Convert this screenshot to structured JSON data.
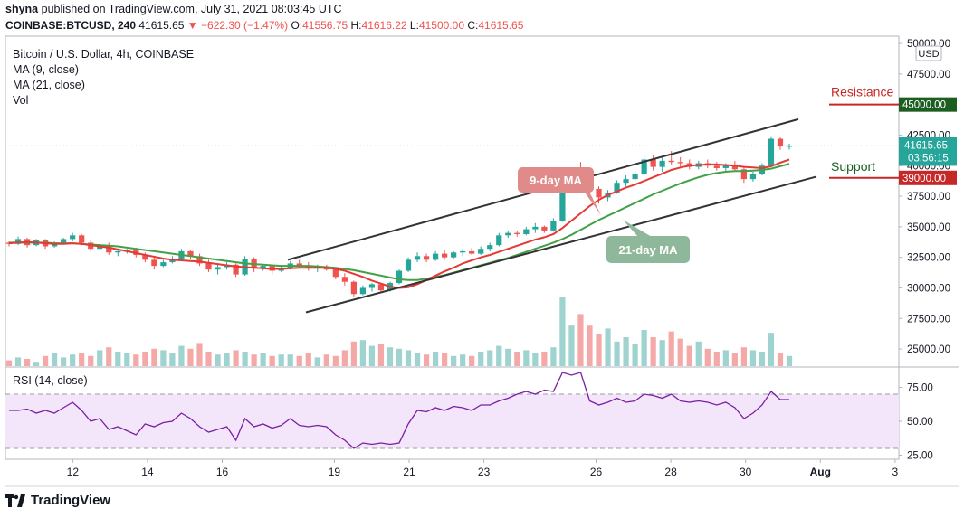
{
  "header": {
    "author": "shyna",
    "published_text": "published on TradingView.com, July 31, 2021 08:03:45 UTC"
  },
  "quote": {
    "symbol": "COINBASE:BTCUSD, 240",
    "last": "41615.65",
    "change": "−622.30 (−1.47%)",
    "o_label": "O:",
    "o": "41556.75",
    "h_label": "H:",
    "h": "41616.22",
    "l_label": "L:",
    "l": "41500.00",
    "c_label": "C:",
    "c": "41615.65"
  },
  "legend": {
    "title": "Bitcoin / U.S. Dollar, 4h, COINBASE",
    "ma9": "MA (9, close)",
    "ma21": "MA (21, close)",
    "vol": "Vol"
  },
  "rsi_label": "RSI (14, close)",
  "footer": {
    "brand": "TradingView"
  },
  "colors": {
    "up": "#26a69a",
    "down": "#ef5350",
    "ma9": "#e53935",
    "ma21": "#43a047",
    "rsi": "#7b1fa2",
    "rsi_band": "#f3e5fa",
    "resistance": "#1b5e20",
    "support": "#c62828"
  },
  "chart_data": [
    {
      "type": "candlestick",
      "title": "Bitcoin / U.S. Dollar, 4h, COINBASE",
      "yunit": "USD",
      "ylim": [
        23600,
        50300
      ],
      "y_ticks": [
        25000,
        27500,
        30000,
        32500,
        35000,
        37500,
        40000,
        42500,
        45000,
        47500,
        50000
      ],
      "y_tick_labels": [
        "25000.00",
        "27500.00",
        "30000.00",
        "32500.00",
        "35000.00",
        "37500.00",
        "40000.00",
        "42500.00",
        "45000.00",
        "47500.00",
        "50000.00"
      ],
      "x_ticks": [
        {
          "day": 12,
          "label": "12"
        },
        {
          "day": 14,
          "label": "14"
        },
        {
          "day": 16,
          "label": "16"
        },
        {
          "day": 19,
          "label": "19"
        },
        {
          "day": 21,
          "label": "21"
        },
        {
          "day": 23,
          "label": "23"
        },
        {
          "day": 26,
          "label": "26"
        },
        {
          "day": 28,
          "label": "28"
        },
        {
          "day": 30,
          "label": "30"
        },
        {
          "day": 32,
          "label": "Aug"
        },
        {
          "day": 34,
          "label": "3"
        }
      ],
      "xlim": [
        10.2,
        34.1
      ],
      "candles": [
        [
          33700,
          33800,
          33400,
          33600
        ],
        [
          33600,
          34200,
          33500,
          34000
        ],
        [
          34000,
          34100,
          33300,
          33500
        ],
        [
          33500,
          34000,
          33400,
          33900
        ],
        [
          33900,
          34000,
          33200,
          33400
        ],
        [
          33400,
          33800,
          33300,
          33700
        ],
        [
          33700,
          34100,
          33600,
          34000
        ],
        [
          34000,
          34500,
          33800,
          34300
        ],
        [
          34300,
          34400,
          33500,
          33700
        ],
        [
          33700,
          33900,
          33000,
          33200
        ],
        [
          33200,
          33600,
          33100,
          33500
        ],
        [
          33500,
          33700,
          32700,
          32900
        ],
        [
          32900,
          33200,
          32600,
          33000
        ],
        [
          33000,
          33200,
          32800,
          33100
        ],
        [
          33100,
          33300,
          32500,
          32700
        ],
        [
          32700,
          32900,
          32100,
          32300
        ],
        [
          32300,
          32600,
          31500,
          31800
        ],
        [
          31800,
          32300,
          31700,
          32100
        ],
        [
          32100,
          32600,
          32000,
          32400
        ],
        [
          32400,
          33200,
          32300,
          33000
        ],
        [
          33000,
          33100,
          32400,
          32600
        ],
        [
          32600,
          32800,
          31800,
          32000
        ],
        [
          32000,
          32300,
          31300,
          31500
        ],
        [
          31500,
          31900,
          31100,
          31700
        ],
        [
          31700,
          32100,
          31500,
          31900
        ],
        [
          31900,
          32000,
          30900,
          31100
        ],
        [
          31100,
          32600,
          31000,
          32400
        ],
        [
          32400,
          32500,
          31300,
          31600
        ],
        [
          31600,
          31900,
          31400,
          31800
        ],
        [
          31800,
          31900,
          31100,
          31400
        ],
        [
          31400,
          31800,
          31300,
          31600
        ],
        [
          31600,
          32200,
          31500,
          32000
        ],
        [
          32000,
          32300,
          31700,
          31800
        ],
        [
          31800,
          32100,
          31400,
          31600
        ],
        [
          31600,
          31900,
          31300,
          31700
        ],
        [
          31700,
          31900,
          31400,
          31500
        ],
        [
          31500,
          31700,
          30700,
          30900
        ],
        [
          30900,
          31200,
          30200,
          30500
        ],
        [
          30500,
          30600,
          29300,
          29500
        ],
        [
          29500,
          30200,
          29400,
          30000
        ],
        [
          30000,
          30400,
          29700,
          30300
        ],
        [
          30300,
          30400,
          29600,
          29800
        ],
        [
          29800,
          30500,
          29700,
          30400
        ],
        [
          30400,
          31500,
          30300,
          31400
        ],
        [
          31400,
          32500,
          31300,
          32300
        ],
        [
          32300,
          32900,
          32100,
          32600
        ],
        [
          32600,
          32800,
          32100,
          32300
        ],
        [
          32300,
          33000,
          32200,
          32800
        ],
        [
          32800,
          33100,
          32300,
          32500
        ],
        [
          32500,
          33000,
          32400,
          32900
        ],
        [
          32900,
          33200,
          32600,
          33000
        ],
        [
          33000,
          33300,
          32700,
          32800
        ],
        [
          32800,
          33400,
          32700,
          33200
        ],
        [
          33200,
          33700,
          33000,
          33500
        ],
        [
          33500,
          34500,
          33400,
          34300
        ],
        [
          34300,
          34700,
          34100,
          34500
        ],
        [
          34500,
          34700,
          34200,
          34400
        ],
        [
          34400,
          35000,
          34300,
          34800
        ],
        [
          34800,
          35300,
          34500,
          35000
        ],
        [
          35000,
          35100,
          34500,
          34700
        ],
        [
          34700,
          35700,
          34600,
          35500
        ],
        [
          35500,
          38800,
          35400,
          38500
        ],
        [
          38500,
          39600,
          38300,
          39300
        ],
        [
          39300,
          40300,
          38600,
          38800
        ],
        [
          38800,
          39000,
          37800,
          38100
        ],
        [
          38100,
          38300,
          36900,
          37400
        ],
        [
          37400,
          38000,
          37100,
          37800
        ],
        [
          37800,
          38800,
          37700,
          38600
        ],
        [
          38600,
          39200,
          38300,
          38900
        ],
        [
          38900,
          39500,
          38700,
          39300
        ],
        [
          39300,
          40800,
          39200,
          40500
        ],
        [
          40500,
          40900,
          39600,
          39900
        ],
        [
          39900,
          40700,
          39500,
          40400
        ],
        [
          40400,
          41200,
          40100,
          40300
        ],
        [
          40300,
          40700,
          39800,
          40200
        ],
        [
          40200,
          40500,
          39700,
          39900
        ],
        [
          39900,
          40400,
          39700,
          40200
        ],
        [
          40200,
          40500,
          39800,
          40000
        ],
        [
          40000,
          40300,
          39600,
          39800
        ],
        [
          39800,
          40200,
          39500,
          40100
        ],
        [
          40100,
          40400,
          39600,
          39700
        ],
        [
          39700,
          39900,
          38600,
          38900
        ],
        [
          38900,
          39500,
          38700,
          39300
        ],
        [
          39300,
          40200,
          39200,
          40000
        ],
        [
          40000,
          42400,
          39900,
          42200
        ],
        [
          42200,
          42300,
          41300,
          41600
        ],
        [
          41600,
          41800,
          41300,
          41615
        ]
      ],
      "ma9": [
        33650,
        33700,
        33750,
        33700,
        33650,
        33600,
        33600,
        33650,
        33600,
        33500,
        33400,
        33300,
        33150,
        33000,
        32850,
        32700,
        32550,
        32400,
        32300,
        32250,
        32200,
        32150,
        32050,
        31950,
        31850,
        31750,
        31700,
        31650,
        31600,
        31550,
        31550,
        31600,
        31650,
        31650,
        31650,
        31650,
        31550,
        31400,
        31150,
        30900,
        30600,
        30350,
        30100,
        30000,
        30050,
        30300,
        30650,
        31000,
        31350,
        31650,
        32000,
        32250,
        32500,
        32700,
        32950,
        33200,
        33450,
        33700,
        33950,
        34150,
        34400,
        34900,
        35500,
        36100,
        36700,
        37200,
        37600,
        37900,
        38200,
        38450,
        38750,
        39050,
        39350,
        39650,
        39850,
        40000,
        40050,
        40100,
        40100,
        40050,
        40000,
        39900,
        39850,
        39800,
        39950,
        40250,
        40500
      ],
      "ma21": [
        33700,
        33700,
        33700,
        33700,
        33700,
        33650,
        33650,
        33650,
        33600,
        33550,
        33500,
        33450,
        33400,
        33300,
        33200,
        33100,
        33000,
        32900,
        32800,
        32700,
        32600,
        32500,
        32400,
        32300,
        32200,
        32100,
        32000,
        31950,
        31900,
        31850,
        31800,
        31800,
        31800,
        31800,
        31750,
        31700,
        31650,
        31550,
        31450,
        31300,
        31150,
        31000,
        30850,
        30700,
        30650,
        30650,
        30750,
        30900,
        31050,
        31250,
        31450,
        31650,
        31850,
        32050,
        32250,
        32450,
        32700,
        32950,
        33200,
        33450,
        33700,
        34000,
        34350,
        34750,
        35150,
        35550,
        35900,
        36250,
        36600,
        36950,
        37300,
        37650,
        37950,
        38250,
        38550,
        38800,
        39050,
        39250,
        39400,
        39500,
        39550,
        39550,
        39600,
        39650,
        39750,
        39950,
        40150
      ],
      "volume": [
        0.04,
        0.06,
        0.05,
        0.03,
        0.07,
        0.09,
        0.06,
        0.08,
        0.09,
        0.07,
        0.11,
        0.13,
        0.1,
        0.09,
        0.08,
        0.1,
        0.12,
        0.11,
        0.09,
        0.14,
        0.12,
        0.16,
        0.1,
        0.08,
        0.09,
        0.11,
        0.1,
        0.08,
        0.09,
        0.07,
        0.08,
        0.08,
        0.07,
        0.09,
        0.06,
        0.08,
        0.07,
        0.11,
        0.17,
        0.18,
        0.14,
        0.15,
        0.13,
        0.12,
        0.11,
        0.09,
        0.08,
        0.1,
        0.09,
        0.07,
        0.08,
        0.07,
        0.1,
        0.11,
        0.14,
        0.12,
        0.1,
        0.11,
        0.09,
        0.1,
        0.13,
        0.48,
        0.28,
        0.36,
        0.28,
        0.22,
        0.26,
        0.17,
        0.2,
        0.15,
        0.25,
        0.2,
        0.18,
        0.24,
        0.19,
        0.14,
        0.17,
        0.12,
        0.1,
        0.11,
        0.09,
        0.13,
        0.11,
        0.1,
        0.23,
        0.09,
        0.07
      ],
      "annotations": [
        {
          "label": "Resistance",
          "value": 45000,
          "price_label": "45000.00"
        },
        {
          "label": "Support",
          "value": 39000,
          "price_label": "39000.00"
        },
        {
          "label": "9-day MA"
        },
        {
          "label": "21-day MA"
        },
        {
          "label": "41615.65"
        },
        {
          "label": "03:56:15"
        },
        {
          "label": "USD"
        }
      ]
    },
    {
      "type": "line",
      "title": "RSI (14, close)",
      "ylim": [
        22,
        90
      ],
      "y_ticks": [
        25,
        50,
        75
      ],
      "y_tick_labels": [
        "25.00",
        "50.00",
        "75.00"
      ],
      "bands": [
        30,
        70
      ],
      "values": [
        58,
        58,
        59,
        56,
        58,
        56,
        60,
        64,
        58,
        50,
        52,
        44,
        46,
        43,
        40,
        48,
        46,
        49,
        50,
        56,
        52,
        46,
        42,
        44,
        46,
        36,
        52,
        46,
        48,
        45,
        47,
        52,
        47,
        46,
        47,
        46,
        40,
        36,
        30,
        34,
        33,
        34,
        33,
        34,
        48,
        58,
        57,
        60,
        58,
        61,
        60,
        58,
        62,
        62,
        65,
        67,
        70,
        72,
        70,
        73,
        72,
        86,
        84,
        86,
        65,
        62,
        64,
        67,
        64,
        65,
        70,
        69,
        67,
        70,
        65,
        64,
        65,
        64,
        62,
        64,
        60,
        52,
        56,
        62,
        72,
        66,
        66
      ]
    }
  ]
}
